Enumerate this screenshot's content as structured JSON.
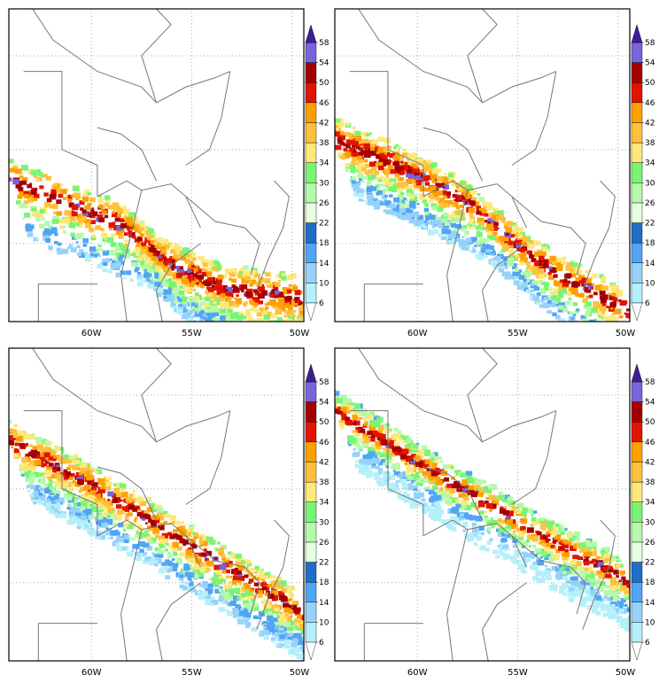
{
  "panels": [
    {
      "lon_labels": [
        "60W",
        "55W",
        "50W"
      ],
      "colorbar_labels": [
        6,
        10,
        14,
        18,
        22,
        26,
        30,
        34,
        38,
        42,
        46,
        50,
        54,
        58
      ]
    },
    {
      "lon_labels": [
        "60W",
        "55W",
        "50W"
      ],
      "colorbar_labels": [
        6,
        10,
        14,
        18,
        22,
        26,
        30,
        34,
        38,
        42,
        46,
        50,
        54,
        58
      ]
    },
    {
      "lon_labels": [
        "60W",
        "55W",
        "50W"
      ],
      "colorbar_labels": [
        6,
        10,
        14,
        18,
        22,
        26,
        30,
        34,
        38,
        42,
        46,
        50,
        54,
        58
      ]
    },
    {
      "lon_labels": [
        "60W",
        "55W",
        "50W"
      ],
      "colorbar_labels": [
        6,
        10,
        14,
        18,
        22,
        26,
        30,
        34,
        38,
        42,
        46,
        50,
        54,
        58
      ]
    }
  ],
  "colorbar_colors": [
    "#ffffff",
    "#b4f0fa",
    "#96d2fa",
    "#50a5f5",
    "#1e6ec8",
    "#e6ffe1",
    "#b4faaa",
    "#78f573",
    "#ffe878",
    "#ffc03c",
    "#ffa000",
    "#e11400",
    "#a50000",
    "#7864dc",
    "#3c1e96"
  ]
}
